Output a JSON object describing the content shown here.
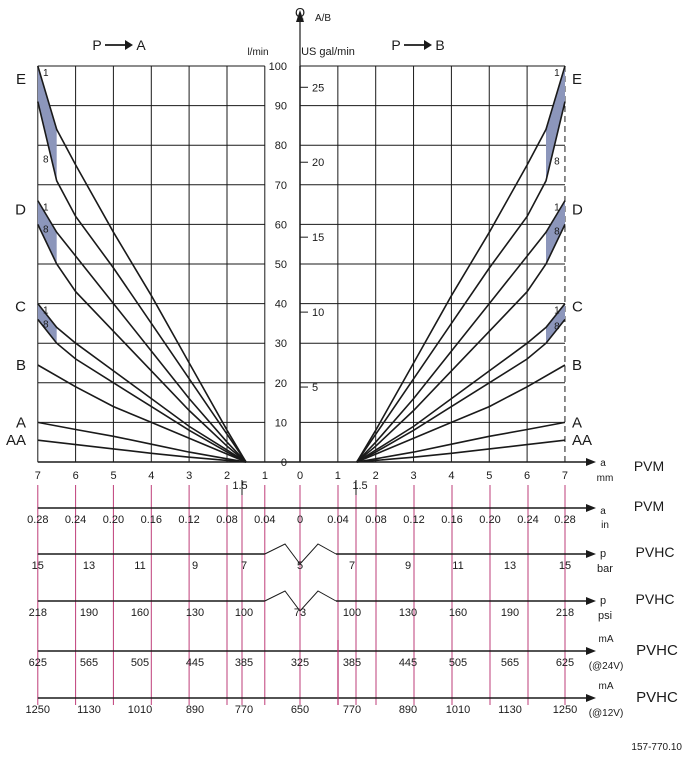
{
  "header": {
    "q_label": "Q",
    "q_sub": "A/B",
    "unit_lmin": "l/min",
    "unit_usgal": "US gal/min",
    "left_arrow_label": "P",
    "left_arrow_target": "A",
    "right_arrow_label": "P",
    "right_arrow_target": "B"
  },
  "colors": {
    "grid": "#1a1a1a",
    "curve": "#1a1a1a",
    "band_fill": "#8c96bb",
    "tick_red": "#b8286a"
  },
  "footer": {
    "drawing_number": "157-770.10"
  },
  "chart_data": {
    "type": "line",
    "title": "",
    "y_axis": {
      "label": "Q A/B",
      "unit": "l/min",
      "ylim": [
        0,
        100
      ],
      "ticks": [
        "0",
        "10",
        "20",
        "30",
        "40",
        "50",
        "60",
        "70",
        "80",
        "90",
        "100"
      ],
      "secondary_unit": "US gal/min",
      "secondary_ticks": [
        "5",
        "10",
        "15",
        "20",
        "25"
      ]
    },
    "x_axis": {
      "unit": "mm",
      "left_ticks": [
        "7",
        "6",
        "5",
        "4",
        "3",
        "2",
        "1"
      ],
      "right_ticks": [
        "0",
        "1",
        "2",
        "3",
        "4",
        "5",
        "6",
        "7"
      ],
      "dead_band_label": "1.5",
      "grid": true
    },
    "curve_labels": [
      "E",
      "D",
      "C",
      "B",
      "A",
      "AA"
    ],
    "band_end_labels": [
      "1",
      "8"
    ],
    "series": [
      {
        "name": "E",
        "x_mm": [
          1.5,
          2,
          3,
          4,
          5,
          6,
          6.5,
          7
        ],
        "upper_l_min": [
          0,
          8,
          25,
          42,
          58,
          75,
          84,
          100
        ],
        "lower_l_min": [
          0,
          7,
          21,
          35,
          49,
          62,
          71,
          91
        ],
        "split_x_mm": 6.5
      },
      {
        "name": "D",
        "x_mm": [
          1.5,
          2,
          3,
          4,
          5,
          6,
          6.5,
          7
        ],
        "upper_l_min": [
          0,
          5,
          16,
          28,
          40,
          52,
          58,
          66
        ],
        "lower_l_min": [
          0,
          4,
          13,
          23,
          33,
          43,
          50,
          60
        ],
        "split_x_mm": 6.5
      },
      {
        "name": "C",
        "x_mm": [
          1.5,
          2,
          3,
          4,
          5,
          6,
          6.5,
          7
        ],
        "upper_l_min": [
          0,
          3,
          9,
          16,
          23,
          30,
          34,
          40
        ],
        "lower_l_min": [
          0,
          2.5,
          8,
          14,
          20,
          26,
          30,
          36
        ],
        "split_x_mm": 6.5
      },
      {
        "name": "B",
        "x_mm": [
          1.5,
          2,
          3,
          4,
          5,
          6,
          7
        ],
        "l_min": [
          0,
          2,
          6,
          10,
          14,
          19,
          24.5
        ]
      },
      {
        "name": "A",
        "x_mm": [
          1.5,
          2,
          3,
          4,
          5,
          6,
          7
        ],
        "l_min": [
          0,
          0.8,
          2.5,
          4.5,
          6.5,
          8.2,
          10
        ]
      },
      {
        "name": "AA",
        "x_mm": [
          1.5,
          2,
          3,
          4,
          5,
          6,
          7
        ],
        "l_min": [
          0,
          0.4,
          1.2,
          2.2,
          3.3,
          4.4,
          5.5
        ]
      }
    ]
  },
  "scales": [
    {
      "id": "in",
      "left_ticks": [
        "0.28",
        "0.24",
        "0.20",
        "0.16",
        "0.12",
        "0.08",
        "0.04"
      ],
      "center": "0",
      "right_ticks": [
        "0.04",
        "0.08",
        "0.12",
        "0.16",
        "0.20",
        "0.24",
        "0.28"
      ],
      "dead_band": "1.5",
      "unit": "a",
      "unit_sub": "in",
      "model": "PVM",
      "break": false
    },
    {
      "id": "bar",
      "left_ticks": [
        "15",
        "13",
        "11",
        "9",
        "7"
      ],
      "center": "5",
      "right_ticks": [
        "7",
        "9",
        "11",
        "13",
        "15"
      ],
      "unit": "p",
      "unit_sub": "bar",
      "model": "PVHC",
      "break": true
    },
    {
      "id": "psi",
      "left_ticks": [
        "218",
        "190",
        "160",
        "130",
        "100"
      ],
      "center": "73",
      "right_ticks": [
        "100",
        "130",
        "160",
        "190",
        "218"
      ],
      "unit": "p",
      "unit_sub": "psi",
      "model": "PVHC",
      "break": true
    },
    {
      "id": "ma24",
      "left_ticks": [
        "625",
        "565",
        "505",
        "445",
        "385"
      ],
      "center": "325",
      "right_ticks": [
        "385",
        "445",
        "505",
        "565",
        "625"
      ],
      "unit": "mA",
      "unit_sub": "(@24V)",
      "model": "PVHC",
      "break": false
    },
    {
      "id": "ma12",
      "left_ticks": [
        "1250",
        "1130",
        "1010",
        "890",
        "770"
      ],
      "center": "650",
      "right_ticks": [
        "770",
        "890",
        "1010",
        "1130",
        "1250"
      ],
      "unit": "mA",
      "unit_sub": "(@12V)",
      "model": "PVHC",
      "break": false
    }
  ],
  "mm_scale": {
    "unit": "a",
    "unit_sub": "mm",
    "model": "PVM"
  }
}
